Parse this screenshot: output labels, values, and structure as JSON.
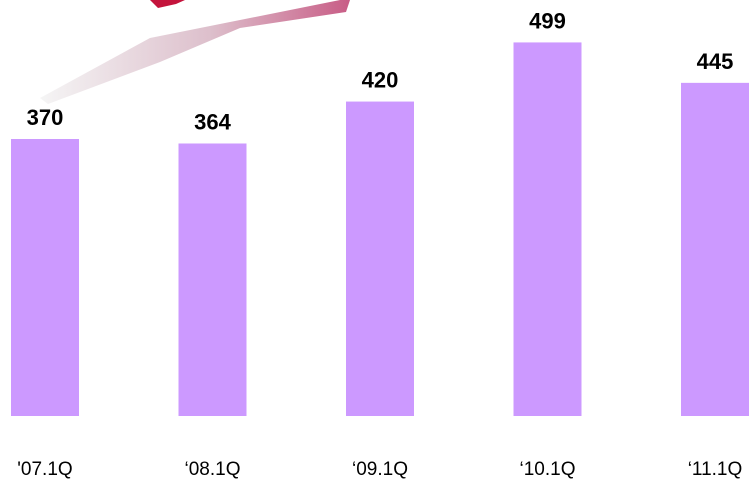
{
  "chart_data": {
    "type": "bar",
    "categories": [
      "'07.1Q",
      "‘08.1Q",
      "‘09.1Q",
      "‘10.1Q",
      "‘11.1Q"
    ],
    "values": [
      370,
      364,
      420,
      499,
      445
    ],
    "ylim": [
      0,
      520
    ],
    "grid": false,
    "bar_color": "#cc99ff",
    "arrow_color_light": "#f2f2f2",
    "arrow_color_dark": "#cc3366",
    "title": "",
    "xlabel": "",
    "ylabel": ""
  }
}
